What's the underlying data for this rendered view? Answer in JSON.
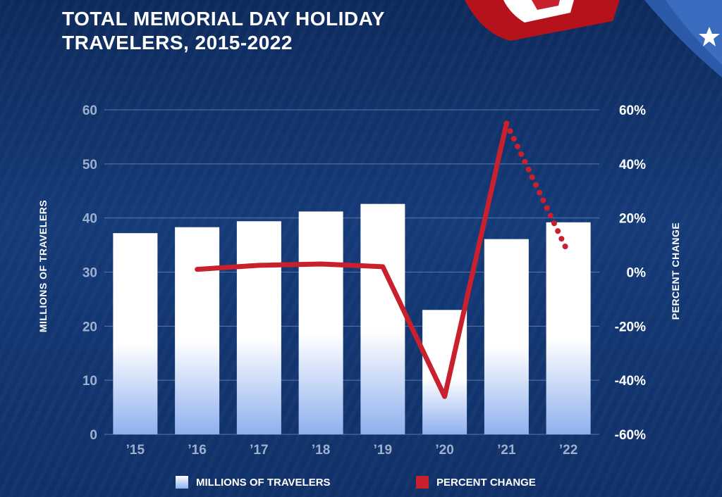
{
  "title": {
    "line1": "TOTAL MEMORIAL DAY HOLIDAY",
    "line2": "TRAVELERS, 2015-2022"
  },
  "colors": {
    "background": "#12336f",
    "bar_top": "#ffffff",
    "bar_bottom": "#8fb0ee",
    "line": "#c8202d",
    "gridline": "#6f86b5",
    "tick_left": "#9fb0cf",
    "tick_right": "#ffffff"
  },
  "chart_data": {
    "type": "bar",
    "title": "TOTAL MEMORIAL DAY HOLIDAY TRAVELERS, 2015-2022",
    "categories": [
      "’15",
      "’16",
      "’17",
      "’18",
      "’19",
      "’20",
      "’21",
      "’22"
    ],
    "series": [
      {
        "name": "MILLIONS OF TRAVELERS",
        "type": "bar",
        "axis": "left",
        "values": [
          37.2,
          38.3,
          39.4,
          41.2,
          42.6,
          23.0,
          36.1,
          39.2
        ]
      },
      {
        "name": "PERCENT CHANGE",
        "type": "line",
        "axis": "right",
        "values": [
          null,
          1.0,
          2.5,
          3.0,
          2.0,
          -46.0,
          55.0,
          7.0
        ],
        "dotted_from_index": 6
      }
    ],
    "ylabel": "MILLIONS OF TRAVELERS",
    "y2label": "PERCENT CHANGE",
    "ylim": [
      0,
      60
    ],
    "y2lim": [
      -60,
      60
    ],
    "yticks": [
      "0",
      "10",
      "20",
      "30",
      "40",
      "50",
      "60"
    ],
    "y2ticks": [
      "-60%",
      "-40%",
      "-20%",
      "0%",
      "20%",
      "40%",
      "60%"
    ],
    "grid": true,
    "legend_position": "bottom"
  },
  "legend": {
    "bars_label": "MILLIONS OF TRAVELERS",
    "line_label": "PERCENT CHANGE"
  }
}
